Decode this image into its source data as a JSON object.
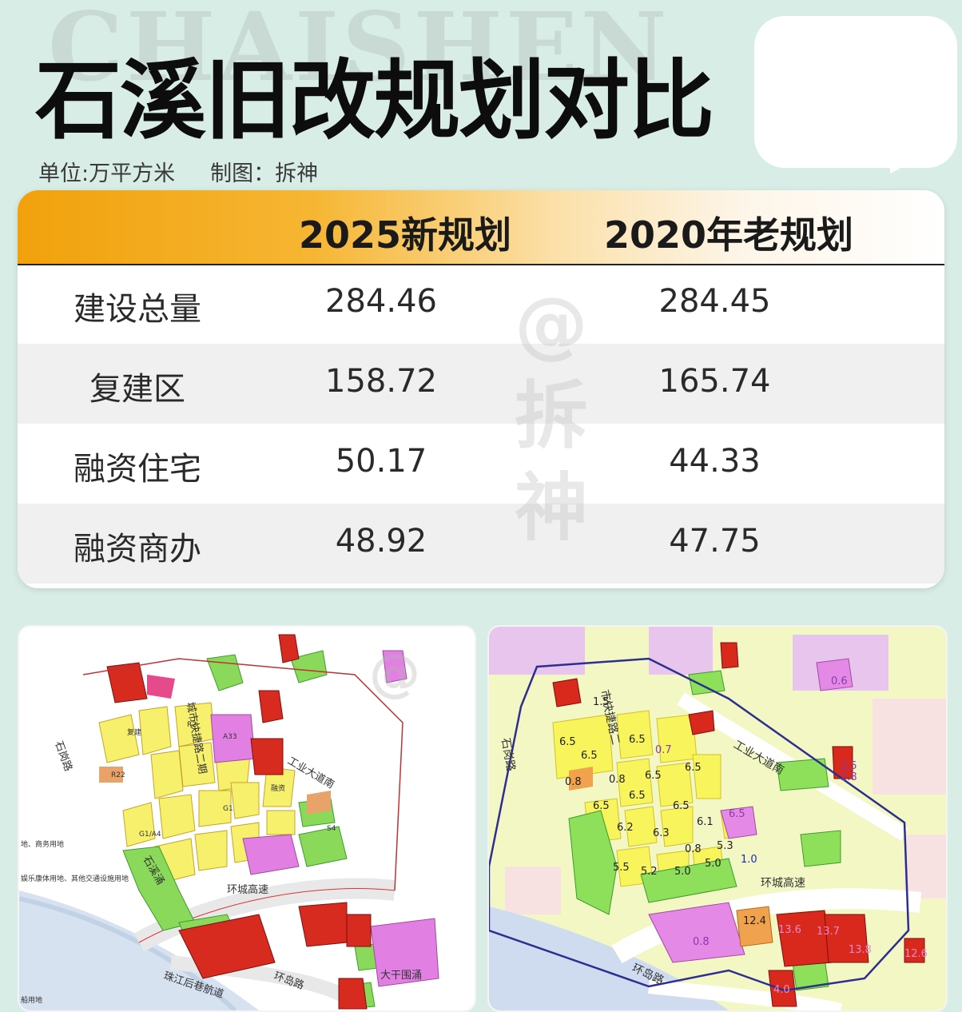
{
  "watermark_bg": "CHAISHEN",
  "title": "石溪旧改规划对比",
  "subtitle": {
    "unit": "单位:万平方米",
    "author": "制图：拆神"
  },
  "table": {
    "headers": [
      "",
      "2025新规划",
      "2020年老规划"
    ],
    "rows": [
      {
        "label": "建设总量",
        "new": "284.46",
        "old": "284.45"
      },
      {
        "label": "复建区",
        "new": "158.72",
        "old": "165.74"
      },
      {
        "label": "融资住宅",
        "new": "50.17",
        "old": "44.33"
      },
      {
        "label": "融资商办",
        "new": "48.92",
        "old": "47.75"
      }
    ]
  },
  "table_watermark": [
    "@",
    "拆",
    "神"
  ],
  "map_left": {
    "roads": [
      "环城高速",
      "环岛路",
      "工业大道南",
      "石岗路",
      "城市快捷路二期",
      "大干围涌",
      "珠江后巷航道",
      "石溪涌"
    ],
    "legend_notes": [
      "地、商务用地",
      "娱乐康体用地、其他交通设施用地",
      "船用地"
    ],
    "parcel_codes": [
      "R2",
      "A33",
      "G1",
      "R22",
      "G1/A4",
      "S4",
      "复建",
      "融资"
    ]
  },
  "map_right": {
    "roads": [
      "环城高速",
      "环岛路",
      "工业大道南",
      "石岗路",
      "市快捷路二"
    ],
    "values": [
      "1.5",
      "6.5",
      "6.5",
      "6.5",
      "0.8",
      "0.7",
      "6.5",
      "6.5",
      "0.8",
      "6.5",
      "6.5",
      "6.5",
      "6.1",
      "6.2",
      "6.3",
      "0.8",
      "5.3",
      "6.5",
      "5.5",
      "5.2",
      "5.0",
      "5.0",
      "1.0",
      "0.6",
      "2.5",
      "2.8",
      "0.8",
      "12.4",
      "13.6",
      "13.7",
      "13.8",
      "12.6",
      "4.0"
    ]
  },
  "colors": {
    "background": "#d9ede7",
    "header_orange": "#f1a10c",
    "residential_yellow": "#f7f26a",
    "green_space": "#7ed957",
    "commercial_red": "#d9261c",
    "education_magenta": "#e07be0"
  }
}
